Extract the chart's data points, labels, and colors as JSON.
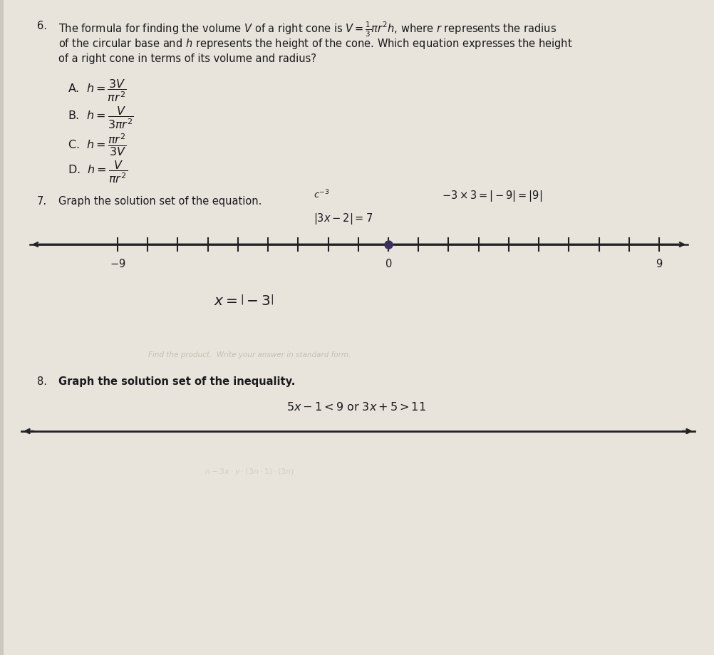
{
  "bg_color": "#ccc8c0",
  "paper_color": "#e8e4dc",
  "text_color": "#1a1a1a",
  "line_color": "#222222",
  "dot_color": "#333355",
  "q6_line1": "The formula for finding the volume $V$ of a right cone is $V = \\frac{1}{3}\\pi r^2h$, where $r$ represents the radius",
  "q6_line2": "of the circular base and $h$ represents the height of the cone. Which equation expresses the height",
  "q6_line3": "of a right cone in terms of its volume and radius?",
  "q6_A": "A.  $h = \\dfrac{3V}{\\pi r^2}$",
  "q6_B": "B.  $h = \\dfrac{V}{3\\pi r^2}$",
  "q6_C": "C.  $h = \\dfrac{\\pi r^2}{3V}$",
  "q6_D": "D.  $h = \\dfrac{V}{\\pi r^2}$",
  "q7_text": "Graph the solution set of the equation.",
  "q7_annotation_top": "$c^{-3}$",
  "q7_equation": "$|3x - 2| = 7$",
  "q7_annotation_right": "$-3 \\times 3 = |-9| = |9|$",
  "q7_label_neg9": "$-9$",
  "q7_label_0": "$0$",
  "q7_label_9": "$9$",
  "q7_below": "$x=\\left|{-3}\\right|$",
  "q8_text": "Graph the solution set of the inequality.",
  "q8_equation": "$5x - 1 < 9$ or $3x + 5 > 11$",
  "ghost_text": "Find the product.  Write your answer in standard form.",
  "font_body": 10.5,
  "font_choice": 11.5
}
